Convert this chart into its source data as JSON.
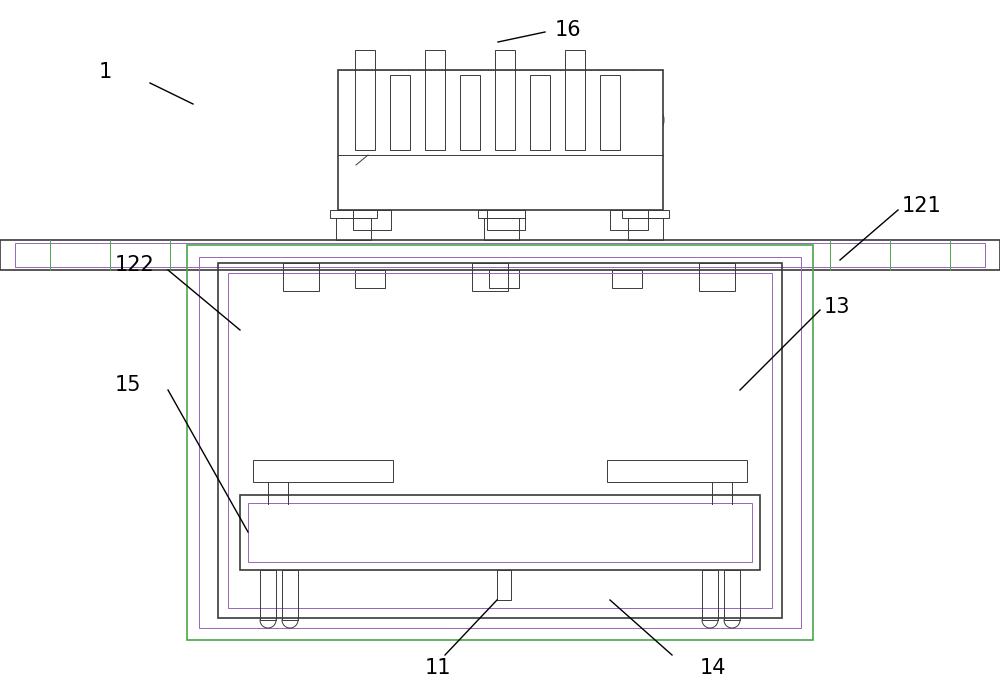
{
  "bg_color": "#ffffff",
  "line_color": "#3a3a3a",
  "green_color": "#4da64d",
  "purple_color": "#9966bb",
  "thin_line": 0.7,
  "medium_line": 1.2,
  "label_color": "#000000",
  "label_fontsize": 15
}
